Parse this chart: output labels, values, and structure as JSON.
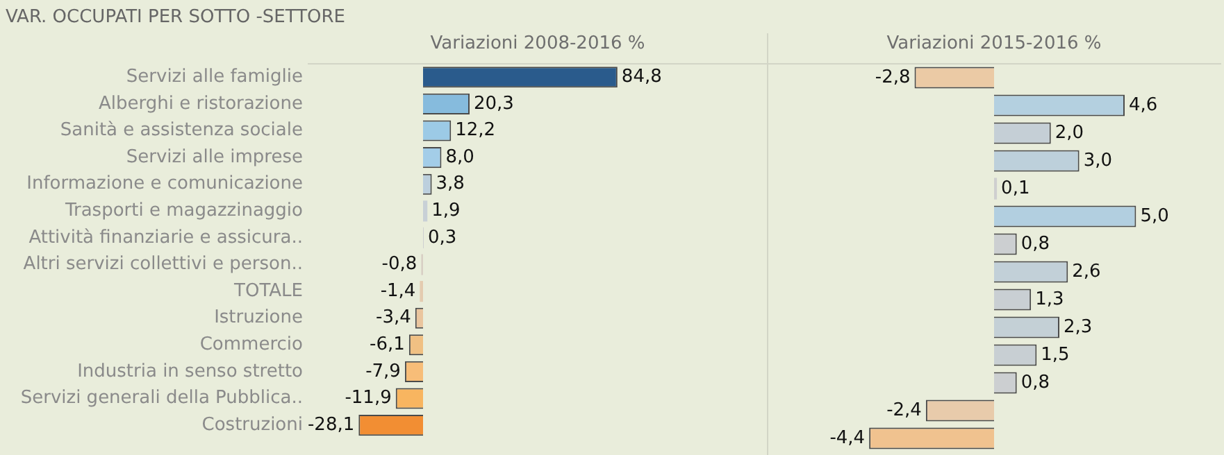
{
  "chart_data": [
    {
      "type": "bar",
      "orientation": "horizontal",
      "title": "VAR. OCCUPATI PER SOTTO -SETTORE",
      "xlabel": "Variazioni 2008-2016 %",
      "categories": [
        "Servizi alle famiglie",
        "Alberghi e ristorazione",
        "Sanità e assistenza sociale",
        "Servizi alle imprese",
        "Informazione e comunicazione",
        "Trasporti e magazzinaggio",
        "Attività finanziarie e assicura..",
        "Altri servizi collettivi e person..",
        "TOTALE",
        "Istruzione",
        "Commercio",
        "Industria in senso stretto",
        "Servizi generali della Pubblica..",
        "Costruzioni"
      ],
      "values": [
        84.8,
        20.3,
        12.2,
        8.0,
        3.8,
        1.9,
        0.3,
        -0.8,
        -1.4,
        -3.4,
        -6.1,
        -7.9,
        -11.9,
        -28.1
      ],
      "value_labels": [
        "84,8",
        "20,3",
        "12,2",
        "8,0",
        "3,8",
        "1,9",
        "0,3",
        "-0,8",
        "-1,4",
        "-3,4",
        "-6,1",
        "-7,9",
        "-11,9",
        "-28,1"
      ],
      "colors": [
        "#2a5b8c",
        "#86bbdd",
        "#9ccae6",
        "#a3cde8",
        "#bccfdd",
        "#c8d0d6",
        "#cfd0d0",
        "#d8cfc4",
        "#e4ccb0",
        "#eac59e",
        "#f0c083",
        "#f7bd78",
        "#f8b560",
        "#f28e33"
      ],
      "tick_labels": "y"
    },
    {
      "type": "bar",
      "orientation": "horizontal",
      "xlabel": "Variazioni 2015-2016 %",
      "categories": [
        null,
        null,
        null,
        null,
        null,
        null,
        null,
        null,
        null,
        null,
        null,
        null,
        null,
        null
      ],
      "values": [
        -2.8,
        4.6,
        2.0,
        3.0,
        0.1,
        5.0,
        0.8,
        2.6,
        1.3,
        2.3,
        1.5,
        0.8,
        -2.4,
        -4.4
      ],
      "value_labels": [
        "-2,8",
        "4,6",
        "2,0",
        "3,0",
        "0,1",
        "5,0",
        "0,8",
        "2,6",
        "1,3",
        "2,3",
        "1,5",
        "0,8",
        "-2,4",
        "-4,4"
      ],
      "colors": [
        "#ebcaa5",
        "#b4d0e0",
        "#c5cfd6",
        "#bdd0db",
        "#cfcfcf",
        "#b2cfe0",
        "#cccfd1",
        "#c2d0d8",
        "#c9cfd3",
        "#c4d0d6",
        "#c8cfd3",
        "#cccfd1",
        "#e8cbab",
        "#f0c28f"
      ],
      "tick_labels": false
    }
  ]
}
